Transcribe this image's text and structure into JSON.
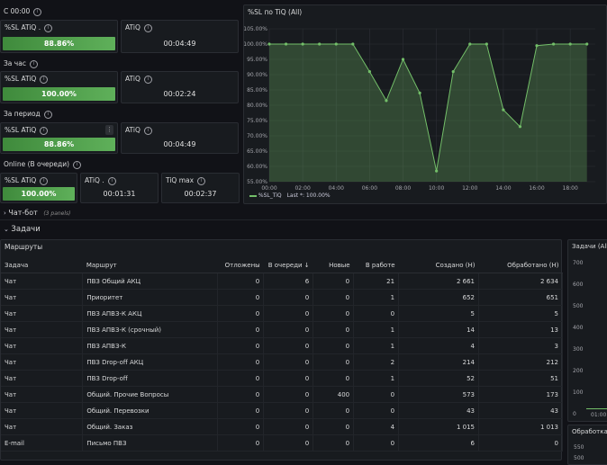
{
  "sections": {
    "since_midnight": "С 00:00",
    "last_hour": "За час",
    "period": "За период",
    "online": "Online (В очереди)"
  },
  "stat_labels": {
    "sl_atiq_dot": "%SL ATiQ .",
    "sl_atiq": "%SL ATiQ",
    "atiq": "ATiQ",
    "atiq_dot": "ATiQ .",
    "tiq_max": "TiQ max"
  },
  "stats": {
    "s1_sl": "88.86%",
    "s1_atiq": "00:04:49",
    "s2_sl": "100.00%",
    "s2_atiq": "00:02:24",
    "s3_sl": "88.86%",
    "s3_atiq": "00:04:49",
    "s4_sl": "100.00%",
    "s4_atiq": "00:01:31",
    "s4_tiqmax": "00:02:37"
  },
  "chart_panel": {
    "title": "%SL по TiQ (All)",
    "legend_label": "%SL_TiQ",
    "legend_last": "Last *: 100.00%"
  },
  "chart_data": {
    "type": "area",
    "title": "%SL по TiQ (All)",
    "xlabel": "",
    "ylabel": "",
    "x_ticks": [
      "00:00",
      "02:00",
      "04:00",
      "06:00",
      "08:00",
      "10:00",
      "12:00",
      "14:00",
      "16:00",
      "18:00"
    ],
    "y_ticks": [
      "55.00%",
      "60.00%",
      "65.00%",
      "70.00%",
      "75.00%",
      "80.00%",
      "85.00%",
      "90.00%",
      "95.00%",
      "100.00%",
      "105.00%"
    ],
    "ylim": [
      55,
      105
    ],
    "xlim": [
      0,
      19.5
    ],
    "grid": true,
    "legend_position": "bottom-left",
    "color": "#73bf69",
    "series": [
      {
        "name": "%SL_TiQ",
        "x": [
          0,
          1,
          2,
          3,
          4,
          5,
          6,
          7,
          8,
          9,
          10,
          11,
          12,
          13,
          14,
          15,
          16,
          17,
          18,
          19
        ],
        "y": [
          100,
          100,
          100,
          100,
          100,
          100,
          91,
          81.5,
          95,
          84,
          58.5,
          91,
          100,
          100,
          78.5,
          73,
          99.5,
          100,
          100,
          100
        ]
      }
    ]
  },
  "rows": {
    "chatbot_label": "Чат-бот",
    "chatbot_count": "(3 panels)",
    "tasks_label": "Задачи"
  },
  "routes_panel": {
    "title": "Маршруты",
    "columns": [
      "Задача",
      "Маршрут",
      "Отложены",
      "В очереди ↓",
      "Новые",
      "В работе",
      "Создано (Н)",
      "Обработано (Н)"
    ],
    "rows": [
      [
        "Чат",
        "ПВЗ Общий АКЦ",
        "0",
        "6",
        "0",
        "21",
        "2 661",
        "2 634"
      ],
      [
        "Чат",
        "Приоритет",
        "0",
        "0",
        "0",
        "1",
        "652",
        "651"
      ],
      [
        "Чат",
        "ПВЗ АПВЗ-К АКЦ",
        "0",
        "0",
        "0",
        "0",
        "5",
        "5"
      ],
      [
        "Чат",
        "ПВЗ АПВЗ-К (срочный)",
        "0",
        "0",
        "0",
        "1",
        "14",
        "13"
      ],
      [
        "Чат",
        "ПВЗ АПВЗ-К",
        "0",
        "0",
        "0",
        "1",
        "4",
        "3"
      ],
      [
        "Чат",
        "ПВЗ Drop-off АКЦ",
        "0",
        "0",
        "0",
        "2",
        "214",
        "212"
      ],
      [
        "Чат",
        "ПВЗ Drop-off",
        "0",
        "0",
        "0",
        "1",
        "52",
        "51"
      ],
      [
        "Чат",
        "Общий. Прочие Вопросы",
        "0",
        "0",
        "400",
        "0",
        "573",
        "173"
      ],
      [
        "Чат",
        "Общий. Перевозки",
        "0",
        "0",
        "0",
        "0",
        "43",
        "43"
      ],
      [
        "Чат",
        "Общий. Заказ",
        "0",
        "0",
        "0",
        "4",
        "1 015",
        "1 013"
      ],
      [
        "E-mail",
        "Письмо ПВЗ",
        "0",
        "0",
        "0",
        "0",
        "6",
        "0"
      ]
    ]
  },
  "side_panel": {
    "title": "Задачи (All)",
    "y_ticks": [
      "700",
      "600",
      "500",
      "400",
      "300",
      "200",
      "100",
      "0"
    ],
    "x_tick": "01:00"
  },
  "side_panel2": {
    "title": "Обработка",
    "y_tick": "550",
    "y_tick2": "500"
  }
}
